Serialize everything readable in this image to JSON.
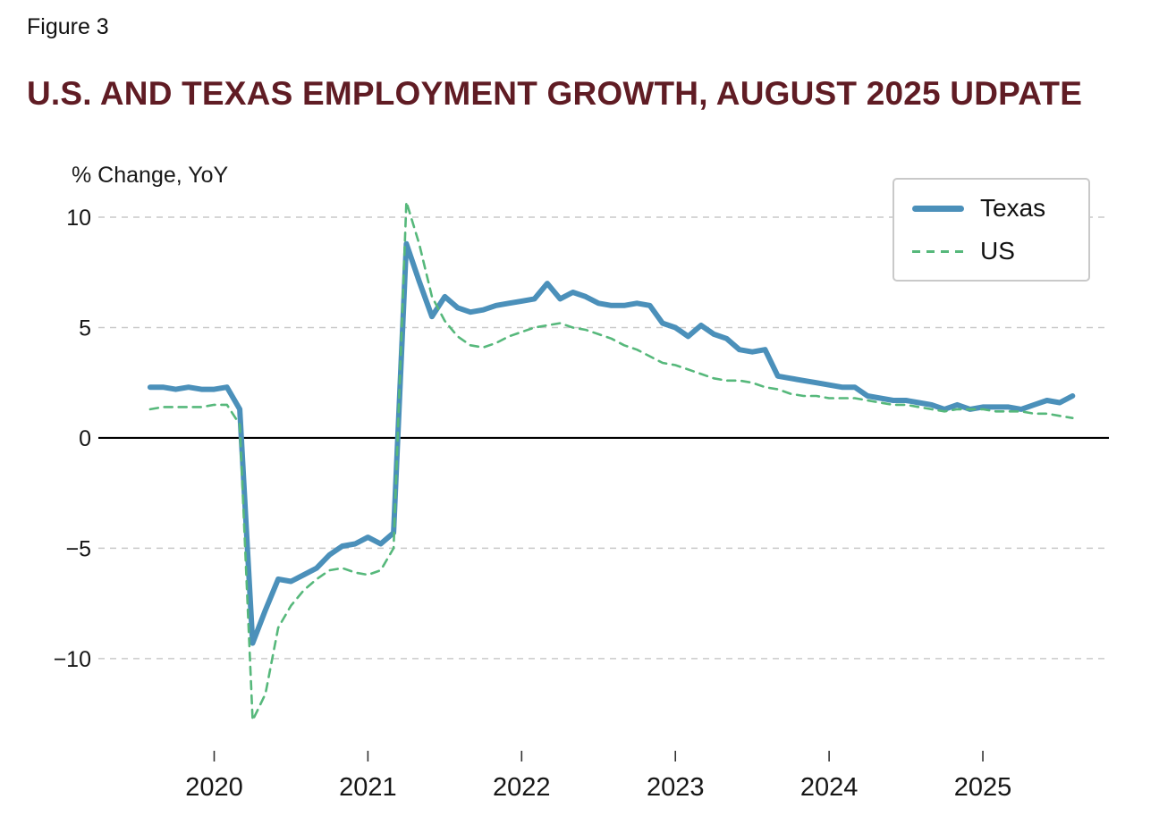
{
  "figure_label": "Figure 3",
  "title": "U.S. AND TEXAS EMPLOYMENT GROWTH, AUGUST 2025 UDPATE",
  "axis_label": "% Change, YoY",
  "colors": {
    "title": "#601c24",
    "texas": "#4b90ba",
    "us": "#56b87b",
    "grid": "#c9c9c9",
    "zero_line": "#000000",
    "tick_text": "#161616"
  },
  "legend": {
    "items": [
      {
        "label": "Texas"
      },
      {
        "label": "US"
      }
    ]
  },
  "chart_data": {
    "type": "line",
    "title": "U.S. AND TEXAS EMPLOYMENT GROWTH, AUGUST 2025 UDPATE",
    "ylabel": "% Change, YoY",
    "frequency": "monthly",
    "start": "2019-08",
    "end": "2025-08",
    "xlim": [
      2019.27,
      2025.82
    ],
    "ylim": [
      -14.5,
      11.5
    ],
    "x_ticks": [
      2020,
      2021,
      2022,
      2023,
      2024,
      2025
    ],
    "y_ticks": [
      10,
      5,
      0,
      -5,
      -10
    ],
    "grid": "dashed horizontal gridlines, solid black zero line, legend top-right",
    "series": [
      {
        "name": "Texas",
        "style": "solid",
        "color": "#4b90ba",
        "values": [
          2.3,
          2.3,
          2.2,
          2.3,
          2.2,
          2.2,
          2.3,
          1.3,
          -9.3,
          -7.8,
          -6.4,
          -6.5,
          -6.2,
          -5.9,
          -5.3,
          -4.9,
          -4.8,
          -4.5,
          -4.8,
          -4.3,
          8.8,
          7.1,
          5.5,
          6.4,
          5.9,
          5.7,
          5.8,
          6.0,
          6.1,
          6.2,
          6.3,
          7.0,
          6.3,
          6.6,
          6.4,
          6.1,
          6.0,
          6.0,
          6.1,
          6.0,
          5.2,
          5.0,
          4.6,
          5.1,
          4.7,
          4.5,
          4.0,
          3.9,
          4.0,
          2.8,
          2.7,
          2.6,
          2.5,
          2.4,
          2.3,
          2.3,
          1.9,
          1.8,
          1.7,
          1.7,
          1.6,
          1.5,
          1.3,
          1.5,
          1.3,
          1.4,
          1.4,
          1.4,
          1.3,
          1.5,
          1.7,
          1.6,
          1.9
        ]
      },
      {
        "name": "US",
        "style": "dashed",
        "color": "#56b87b",
        "values": [
          1.3,
          1.4,
          1.4,
          1.4,
          1.4,
          1.5,
          1.5,
          0.6,
          -12.8,
          -11.6,
          -8.6,
          -7.6,
          -6.9,
          -6.4,
          -6.0,
          -5.9,
          -6.1,
          -6.2,
          -6.0,
          -5.0,
          10.7,
          8.8,
          6.4,
          5.3,
          4.6,
          4.2,
          4.1,
          4.3,
          4.6,
          4.8,
          5.0,
          5.1,
          5.2,
          5.0,
          4.9,
          4.7,
          4.5,
          4.2,
          4.0,
          3.7,
          3.4,
          3.3,
          3.1,
          2.9,
          2.7,
          2.6,
          2.6,
          2.5,
          2.3,
          2.2,
          2.0,
          1.9,
          1.9,
          1.8,
          1.8,
          1.8,
          1.7,
          1.6,
          1.5,
          1.5,
          1.4,
          1.3,
          1.2,
          1.3,
          1.3,
          1.3,
          1.2,
          1.2,
          1.2,
          1.1,
          1.1,
          1.0,
          0.9
        ]
      }
    ]
  }
}
